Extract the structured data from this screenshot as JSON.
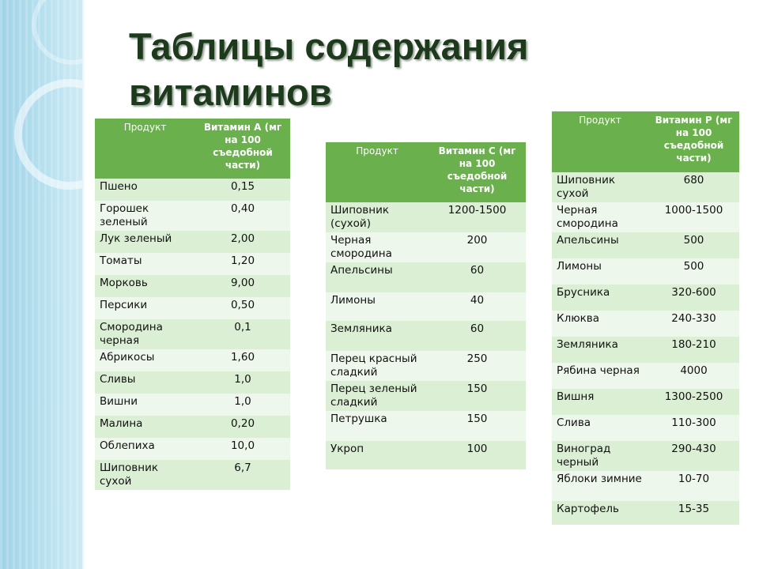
{
  "title": "Таблицы содержания витаминов",
  "colors": {
    "header_green": "#6ab04c",
    "row_light": "#eef7eb",
    "row_dark": "#dbefd5",
    "title_color": "#1d3a1d",
    "band_blue": "#b9e2f0"
  },
  "table_a": {
    "headers": [
      "Продукт",
      "Витамин А (мг на 100 съедобной части)"
    ],
    "rows": [
      [
        "Пшено",
        "0,15"
      ],
      [
        "Горошек зеленый",
        "0,40"
      ],
      [
        " Лук зеленый",
        "2,00"
      ],
      [
        "Томаты",
        "1,20"
      ],
      [
        "Морковь",
        "9,00"
      ],
      [
        "Персики",
        "0,50"
      ],
      [
        "Смородина черная",
        "0,1"
      ],
      [
        "Абрикосы",
        "1,60"
      ],
      [
        "Сливы",
        "1,0"
      ],
      [
        "Вишни",
        "1,0"
      ],
      [
        "Малина",
        "0,20"
      ],
      [
        "Облепиха",
        "10,0"
      ],
      [
        "Шиповник сухой",
        "6,7"
      ]
    ]
  },
  "table_c": {
    "headers": [
      "Продукт",
      "Витамин С (мг на 100 съедобной части)"
    ],
    "rows": [
      [
        "Шиповник (сухой)",
        "1200-1500"
      ],
      [
        "Черная смородина",
        "200"
      ],
      [
        "Апельсины",
        "60"
      ],
      [
        "Лимоны",
        "40"
      ],
      [
        "Земляника",
        "60"
      ],
      [
        "Перец красный сладкий",
        "250"
      ],
      [
        "Перец зеленый сладкий",
        "150"
      ],
      [
        "Петрушка",
        "150"
      ],
      [
        "Укроп",
        "100"
      ]
    ]
  },
  "table_p": {
    "headers": [
      "Продукт",
      "Витамин Р (мг на 100 съедобной части)"
    ],
    "rows": [
      [
        "Шиповник сухой",
        "680"
      ],
      [
        "Черная смородина",
        "1000-1500"
      ],
      [
        "Апельсины",
        "500"
      ],
      [
        "Лимоны",
        "500"
      ],
      [
        "Брусника",
        "320-600"
      ],
      [
        "Клюква",
        "240-330"
      ],
      [
        "Земляника",
        "180-210"
      ],
      [
        "Рябина черная",
        "4000"
      ],
      [
        "Вишня",
        "1300-2500"
      ],
      [
        "Слива",
        "110-300"
      ],
      [
        "Виноград черный",
        "290-430"
      ],
      [
        "Яблоки зимние",
        "10-70"
      ],
      [
        "Картофель",
        "15-35"
      ]
    ]
  }
}
